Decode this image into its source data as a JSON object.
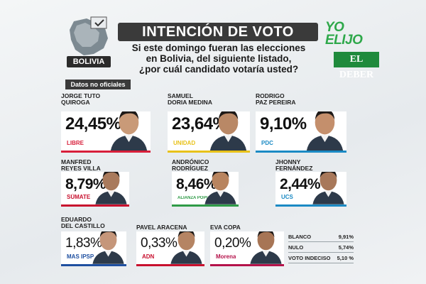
{
  "header": {
    "country_label": "BOLIVIA",
    "title": "INTENCIÓN DE VOTO",
    "question_lines": [
      "Si este domingo fueran las elecciones",
      "en Bolivia, del siguiente listado,",
      "¿por cuál candidato votaría usted?"
    ],
    "brand_top_1": "YO",
    "brand_top_2": "ELIJO",
    "brand": "EL DEBER"
  },
  "note": "Datos no oficiales",
  "candidates": [
    {
      "name_l1": "JORGE TUTO",
      "name_l2": "QUIROGA",
      "pct": "24,45%",
      "party": "LIBRE",
      "color": "#d81f3a"
    },
    {
      "name_l1": "SAMUEL",
      "name_l2": "DORIA MEDINA",
      "pct": "23,64%",
      "party": "UNIDAD",
      "color": "#e8c21a"
    },
    {
      "name_l1": "RODRIGO",
      "name_l2": "PAZ PEREIRA",
      "pct": "9,10%",
      "party": "PDC",
      "color": "#1b8ac4"
    },
    {
      "name_l1": "MANFRED",
      "name_l2": "REYES VILLA",
      "pct": "8,79%",
      "party": "SÚMATE",
      "color": "#c8102e"
    },
    {
      "name_l1": "ANDRÓNICO",
      "name_l2": "RODRÍGUEZ",
      "pct": "8,46%",
      "party": "ALIANZA POPULAR",
      "color": "#2f9b47"
    },
    {
      "name_l1": "JHONNY",
      "name_l2": "FERNÁNDEZ",
      "pct": "2,44%",
      "party": "UCS",
      "color": "#1b8ac4"
    },
    {
      "name_l1": "EDUARDO",
      "name_l2": "DEL CASTILLO",
      "pct": "1,83%",
      "party": "MAS IPSP",
      "color": "#1e4fa0"
    },
    {
      "name_l1": "PAVEL ARACENA",
      "name_l2": "",
      "pct": "0,33%",
      "party": "ADN",
      "color": "#c8102e"
    },
    {
      "name_l1": "EVA COPA",
      "name_l2": "",
      "pct": "0,20%",
      "party": "Morena",
      "color": "#b5124a"
    }
  ],
  "others": [
    {
      "label": "BLANCO",
      "pct": "9,91%"
    },
    {
      "label": "NULO",
      "pct": "5,74%"
    },
    {
      "label": "VOTO INDECISO",
      "pct": "5,10 %"
    }
  ],
  "chart_data": {
    "type": "table",
    "title": "INTENCIÓN DE VOTO",
    "categories": [
      "JORGE TUTO QUIROGA",
      "SAMUEL DORIA MEDINA",
      "RODRIGO PAZ PEREIRA",
      "MANFRED REYES VILLA",
      "ANDRÓNICO RODRÍGUEZ",
      "JHONNY FERNÁNDEZ",
      "EDUARDO DEL CASTILLO",
      "PAVEL ARACENA",
      "EVA COPA",
      "BLANCO",
      "NULO",
      "VOTO INDECISO"
    ],
    "values": [
      24.45,
      23.64,
      9.1,
      8.79,
      8.46,
      2.44,
      1.83,
      0.33,
      0.2,
      9.91,
      5.74,
      5.1
    ]
  }
}
